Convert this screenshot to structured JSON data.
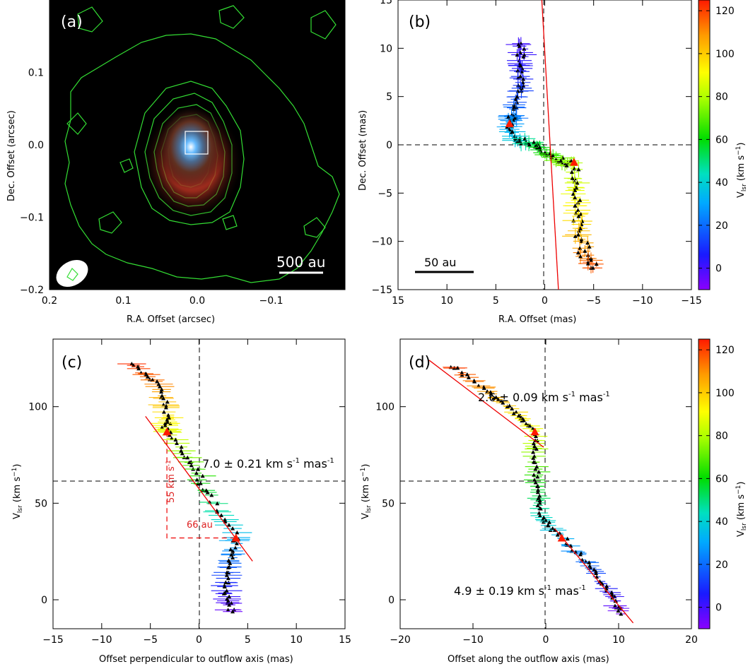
{
  "chart_data": [
    {
      "panel": "a",
      "type": "heatmap",
      "label": "(a)",
      "xlabel": "R.A. Offset (arcsec)",
      "ylabel": "Dec. Offset (arcsec)",
      "xlim": [
        0.2,
        -0.2
      ],
      "ylim": [
        -0.2,
        0.2
      ],
      "xticks": [
        0.2,
        0.1,
        0.0,
        -0.1
      ],
      "yticks": [
        0.1,
        0.0,
        -0.1,
        -0.2
      ],
      "xtick_labels": [
        "0.2",
        "0.1",
        "0.0",
        "−0.1"
      ],
      "ytick_labels": [
        "0.1",
        "0.0",
        "−0.1",
        "−0.2"
      ],
      "scalebar_label": "500 au",
      "contour_color": "#33dd33"
    },
    {
      "panel": "b",
      "type": "scatter",
      "label": "(b)",
      "xlabel": "R.A. Offset (mas)",
      "ylabel": "Dec. Offset (mas)",
      "xlim": [
        15,
        -15
      ],
      "ylim": [
        -15,
        15
      ],
      "xticks": [
        15,
        10,
        5,
        0,
        -5,
        -10,
        -15
      ],
      "yticks": [
        -15,
        -10,
        -5,
        0,
        5,
        10,
        15
      ],
      "xtick_labels": [
        "15",
        "10",
        "5",
        "0",
        "−5",
        "−10",
        "−15"
      ],
      "ytick_labels": [
        "−15",
        "−10",
        "−5",
        "0",
        "5",
        "10",
        "15"
      ],
      "scalebar_label": "50 au",
      "fit_line": [
        [
          0.3,
          15
        ],
        [
          -1.4,
          -15
        ]
      ],
      "red_markers": [
        [
          3.6,
          2.2
        ],
        [
          -3.0,
          -1.8
        ]
      ],
      "colorbar": {
        "label": "V",
        "sub": "lsr",
        "unit": " (km s",
        "sup": "−1",
        "tail": ")",
        "ticks": [
          0,
          20,
          40,
          60,
          80,
          100,
          120
        ],
        "range": [
          -10,
          125
        ]
      }
    },
    {
      "panel": "c",
      "type": "scatter",
      "label": "(c)",
      "xlabel": "Offset perpendicular to outflow axis (mas)",
      "ylabel": "V",
      "ylabel_sub": "lsr",
      "ylabel_unit": " (km s",
      "ylabel_sup": "−1",
      "ylabel_tail": ")",
      "xlim": [
        -15,
        15
      ],
      "ylim": [
        -15,
        135
      ],
      "xticks": [
        -15,
        -10,
        -5,
        0,
        5,
        10,
        15
      ],
      "yticks": [
        0,
        50,
        100
      ],
      "xtick_labels": [
        "−15",
        "−10",
        "−5",
        "0",
        "5",
        "10",
        "15"
      ],
      "ytick_labels": [
        "0",
        "50",
        "100"
      ],
      "annotation": "7.0 ± 0.21 km s",
      "annotation_sup": "-1",
      "annotation_tail": " mas",
      "annotation_sup2": "-1",
      "dashed_label_v": "55 km s",
      "dashed_label_v_sup": "-1",
      "dashed_label_h": "66 au",
      "fit_line": [
        [
          -5.5,
          95
        ],
        [
          5.5,
          20
        ]
      ],
      "red_markers": [
        [
          -3.3,
          87
        ],
        [
          3.8,
          32
        ]
      ]
    },
    {
      "panel": "d",
      "type": "scatter",
      "label": "(d)",
      "xlabel": "Offset along the outflow axis (mas)",
      "ylabel": "V",
      "ylabel_sub": "lsr",
      "ylabel_unit": " (km s",
      "ylabel_sup": "−1",
      "ylabel_tail": ")",
      "xlim": [
        -20,
        20
      ],
      "ylim": [
        -15,
        135
      ],
      "xticks": [
        -20,
        -10,
        0,
        10,
        20
      ],
      "yticks": [
        0,
        50,
        100
      ],
      "xtick_labels": [
        "−20",
        "−10",
        "0",
        "10",
        "20"
      ],
      "ytick_labels": [
        "0",
        "50",
        "100"
      ],
      "annotation_top": "2.6 ± 0.09 km s",
      "annotation_top_sup": "-1",
      "annotation_top_tail": " mas",
      "annotation_top_sup2": "-1",
      "annotation_bottom": "4.9 ± 0.19 km s",
      "annotation_bottom_sup": "-1",
      "annotation_bottom_tail": " mas",
      "annotation_bottom_sup2": "-1",
      "fit_line_top": [
        [
          -16,
          124
        ],
        [
          -0.3,
          79
        ]
      ],
      "fit_line_bottom": [
        [
          1.2,
          37
        ],
        [
          12,
          -12
        ]
      ],
      "red_markers": [
        [
          -1.5,
          87
        ],
        [
          2.2,
          32
        ]
      ],
      "colorbar": {
        "label": "V",
        "sub": "lsr",
        "unit": " (km s",
        "sup": "−1",
        "tail": ")",
        "ticks": [
          0,
          20,
          40,
          60,
          80,
          100,
          120
        ],
        "range": [
          -10,
          125
        ]
      }
    }
  ]
}
